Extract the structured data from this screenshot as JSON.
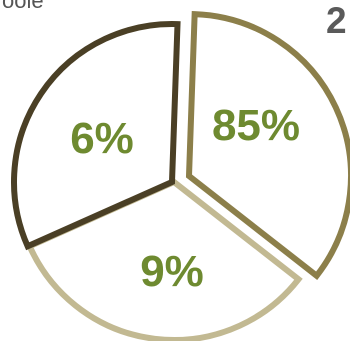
{
  "page": {
    "top_left_text": "oole",
    "top_right_text": "2"
  },
  "chart_data": {
    "type": "pie",
    "style": "exploded-outline",
    "slices": [
      {
        "label": "85%",
        "value": 85,
        "outline_color": "#8c7f4a"
      },
      {
        "label": "9%",
        "value": 9,
        "outline_color": "#c2b992"
      },
      {
        "label": "6%",
        "value": 6,
        "outline_color": "#4a3f25"
      }
    ],
    "label_color": "#6e8a30",
    "fill_color": "#ffffff"
  }
}
